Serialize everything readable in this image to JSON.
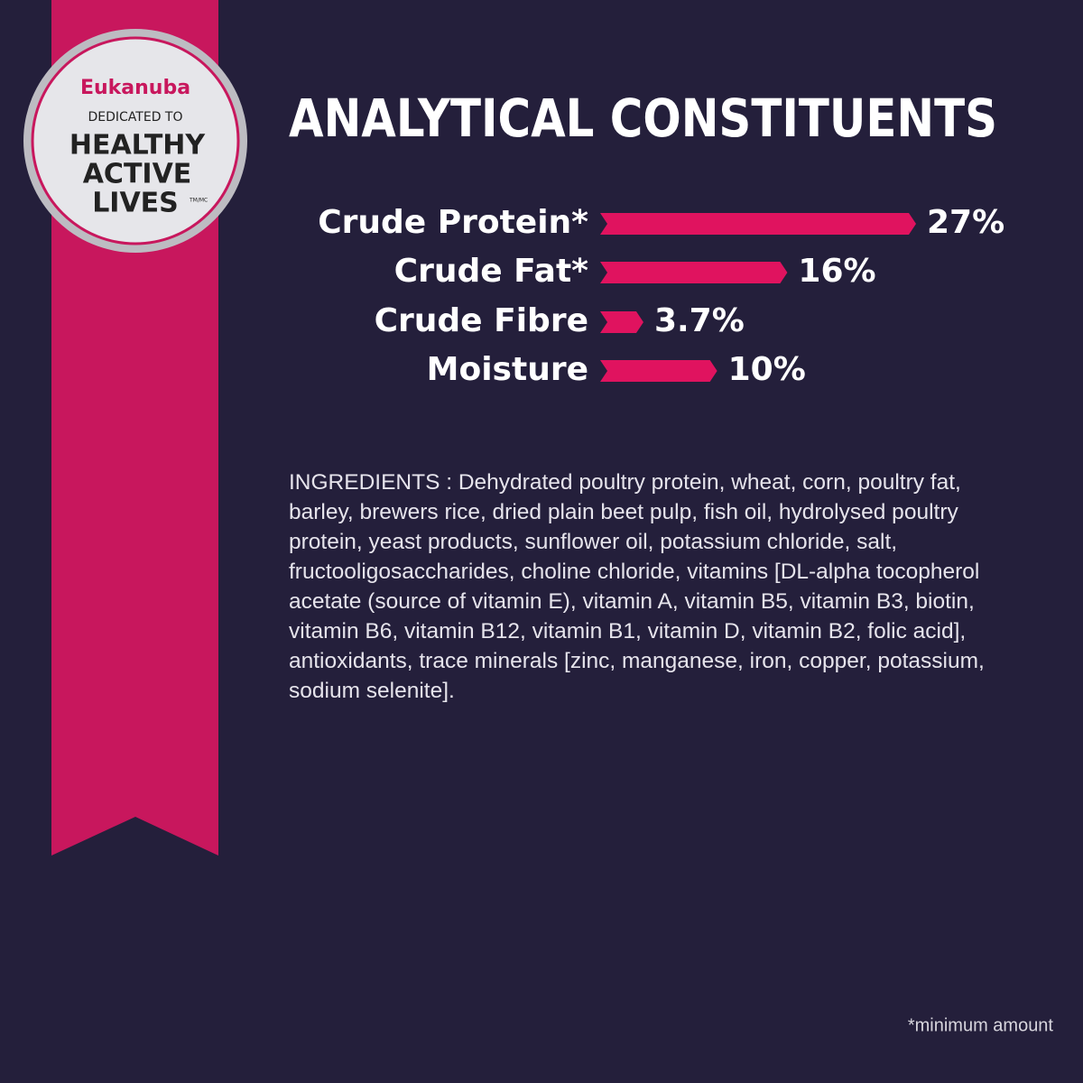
{
  "badge": {
    "brand": "Eukanuba",
    "line1": "DEDICATED TO",
    "line2": "HEALTHY",
    "line3": "ACTIVE",
    "line4": "LIVES",
    "trademark": "TM/MC"
  },
  "chart_data": {
    "type": "hbar",
    "title": "ANALYTICAL CONSTITUENTS",
    "categories": [
      "Crude Protein*",
      "Crude Fat*",
      "Crude Fibre",
      "Moisture"
    ],
    "values": [
      27,
      16,
      3.7,
      10
    ],
    "value_labels": [
      "27%",
      "16%",
      "3.7%",
      "10%"
    ],
    "color": "#e0135f"
  },
  "ingredients": "INGREDIENTS : Dehydrated poultry protein, wheat, corn, poultry fat, barley, brewers rice, dried plain beet pulp, fish oil, hydrolysed poultry protein, yeast products, sunflower oil, potassium chloride, salt, fructooligosaccharides, choline chloride, vitamins [DL-alpha tocopherol acetate (source of vitamin E), vitamin A, vitamin B5, vitamin B3, biotin, vitamin B6, vitamin B12, vitamin B1, vitamin D, vitamin B2, folic acid], antioxidants, trace minerals [zinc, manganese, iron, copper, potassium, sodium selenite].",
  "footnote": "*minimum amount"
}
